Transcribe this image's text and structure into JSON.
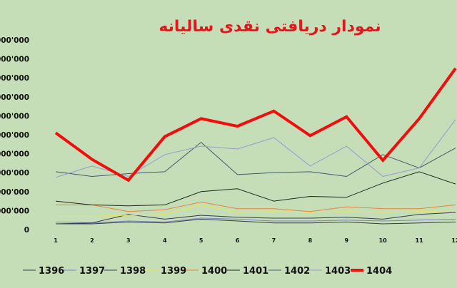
{
  "chart_data": {
    "type": "line",
    "title": "نمودار دریافتی نقدی سالیانه",
    "title_color": "#e8141b",
    "background": "#c5deb8",
    "x": [
      "1",
      "2",
      "3",
      "4",
      "5",
      "6",
      "7",
      "8",
      "9",
      "10",
      "11",
      "12"
    ],
    "ytick_labels": [
      "0",
      "'000'000",
      "'000'000",
      "'000'000",
      "'000'000",
      "'000'000",
      "'000'000",
      "'000'000",
      "'000'000",
      "'000'000",
      "'000'000"
    ],
    "ylim": [
      0,
      10
    ],
    "grid": false,
    "legend_position": "bottom",
    "series": [
      {
        "name": "1396",
        "color": "#3b3b3b",
        "width": 1,
        "values": [
          0.3,
          0.3,
          0.4,
          0.35,
          0.55,
          0.45,
          0.35,
          0.35,
          0.4,
          0.3,
          0.35,
          0.4
        ]
      },
      {
        "name": "1397",
        "color": "#7a86c8",
        "width": 1,
        "values": [
          0.4,
          0.35,
          0.45,
          0.4,
          0.6,
          0.55,
          0.45,
          0.45,
          0.5,
          0.45,
          0.5,
          0.55
        ]
      },
      {
        "name": "1398",
        "color": "#3a3a5a",
        "width": 1,
        "values": [
          0.3,
          0.35,
          0.8,
          0.55,
          0.75,
          0.65,
          0.6,
          0.6,
          0.65,
          0.55,
          0.8,
          0.9
        ]
      },
      {
        "name": "1399",
        "color": "#e8e84a",
        "width": 1,
        "values": [
          0.7,
          0.7,
          0.75,
          0.8,
          1.3,
          0.9,
          0.95,
          0.9,
          0.95,
          0.9,
          0.95,
          1.0
        ]
      },
      {
        "name": "1400",
        "color": "#e8843a",
        "width": 1,
        "values": [
          1.3,
          1.3,
          0.95,
          1.05,
          1.45,
          1.1,
          1.1,
          0.95,
          1.2,
          1.1,
          1.1,
          1.3
        ]
      },
      {
        "name": "1401",
        "color": "#1f2a1f",
        "width": 1,
        "values": [
          1.5,
          1.3,
          1.25,
          1.3,
          2.0,
          2.15,
          1.5,
          1.75,
          1.7,
          2.45,
          3.05,
          2.4
        ]
      },
      {
        "name": "1402",
        "color": "#3e5a68",
        "width": 1,
        "values": [
          3.05,
          2.8,
          2.95,
          3.05,
          4.6,
          2.9,
          3.0,
          3.05,
          2.8,
          3.95,
          3.25,
          4.3
        ]
      },
      {
        "name": "1403",
        "color": "#9a9ad2",
        "width": 1,
        "values": [
          2.75,
          3.35,
          2.8,
          3.95,
          4.4,
          4.25,
          4.85,
          3.35,
          4.4,
          2.8,
          3.25,
          5.8
        ]
      },
      {
        "name": "1404",
        "color": "#f20c0c",
        "width": 4,
        "values": [
          5.1,
          3.7,
          2.6,
          4.9,
          5.85,
          5.45,
          6.25,
          4.95,
          5.95,
          3.65,
          5.85,
          8.5
        ]
      }
    ]
  }
}
